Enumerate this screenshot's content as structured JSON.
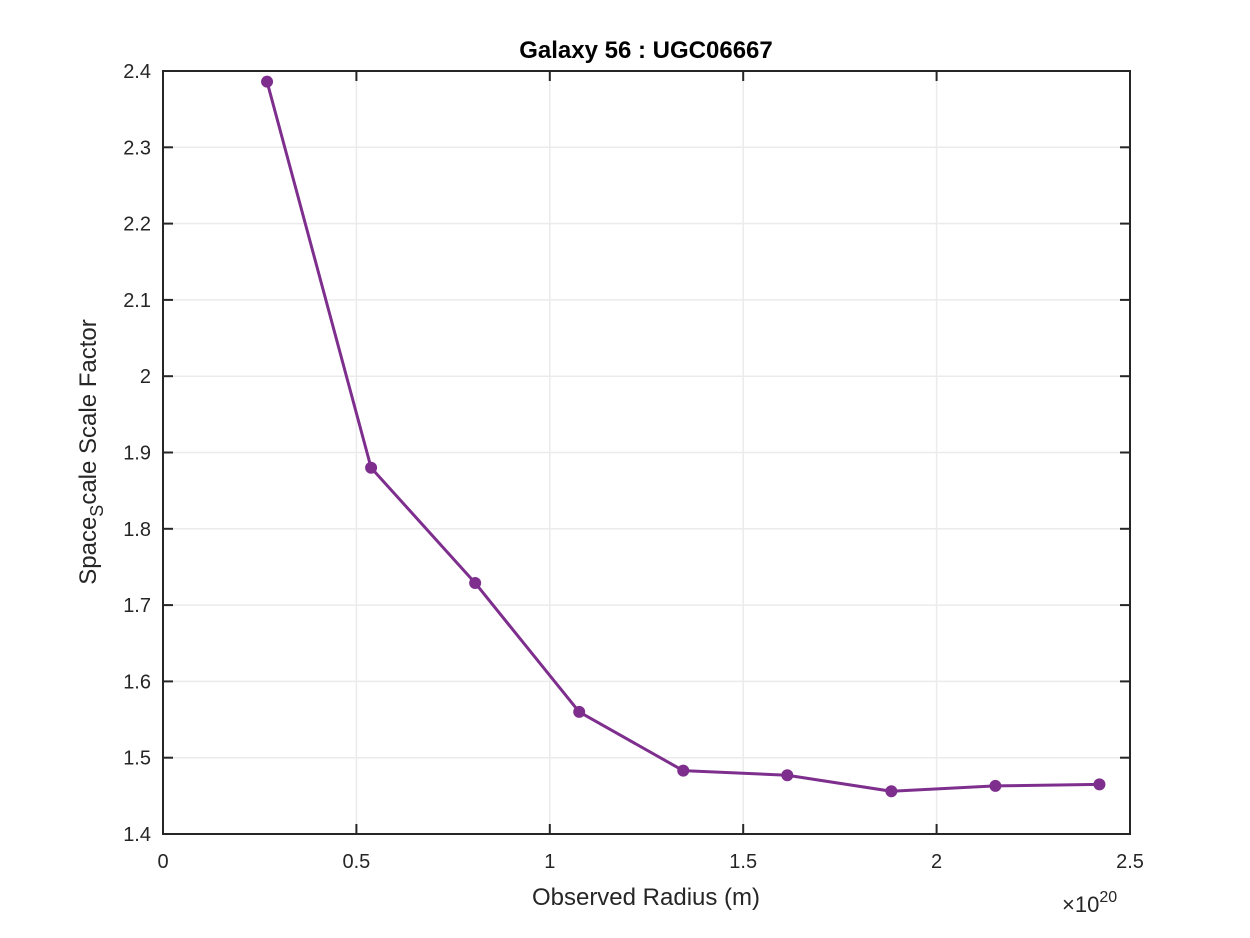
{
  "chart_data": {
    "type": "line",
    "title": "Galaxy 56 : UGC06667",
    "xlabel": "Observed Radius (m)",
    "ylabel_main": "Space",
    "ylabel_sub": "S",
    "ylabel_rest": "cale Scale Factor",
    "x_exponent_prefix": "×10",
    "x_exponent_power": "20",
    "xlim": [
      0,
      2.5
    ],
    "ylim": [
      1.4,
      2.4
    ],
    "xticks": [
      0,
      0.5,
      1,
      1.5,
      2,
      2.5
    ],
    "xtick_labels": [
      "0",
      "0.5",
      "1",
      "1.5",
      "2",
      "2.5"
    ],
    "yticks": [
      1.4,
      1.5,
      1.6,
      1.7,
      1.8,
      1.9,
      2.0,
      2.1,
      2.2,
      2.3,
      2.4
    ],
    "ytick_labels": [
      "1.4",
      "1.5",
      "1.6",
      "1.7",
      "1.8",
      "1.9",
      "2",
      "2.1",
      "2.2",
      "2.3",
      "2.4"
    ],
    "grid": true,
    "line_color": "#7E2F8E",
    "series": [
      {
        "x": [
          0.269,
          0.538,
          0.807,
          1.076,
          1.345,
          1.614,
          1.883,
          2.152,
          2.421
        ],
        "y": [
          2.386,
          1.88,
          1.729,
          1.56,
          1.483,
          1.477,
          1.456,
          1.463,
          1.465
        ]
      }
    ]
  }
}
